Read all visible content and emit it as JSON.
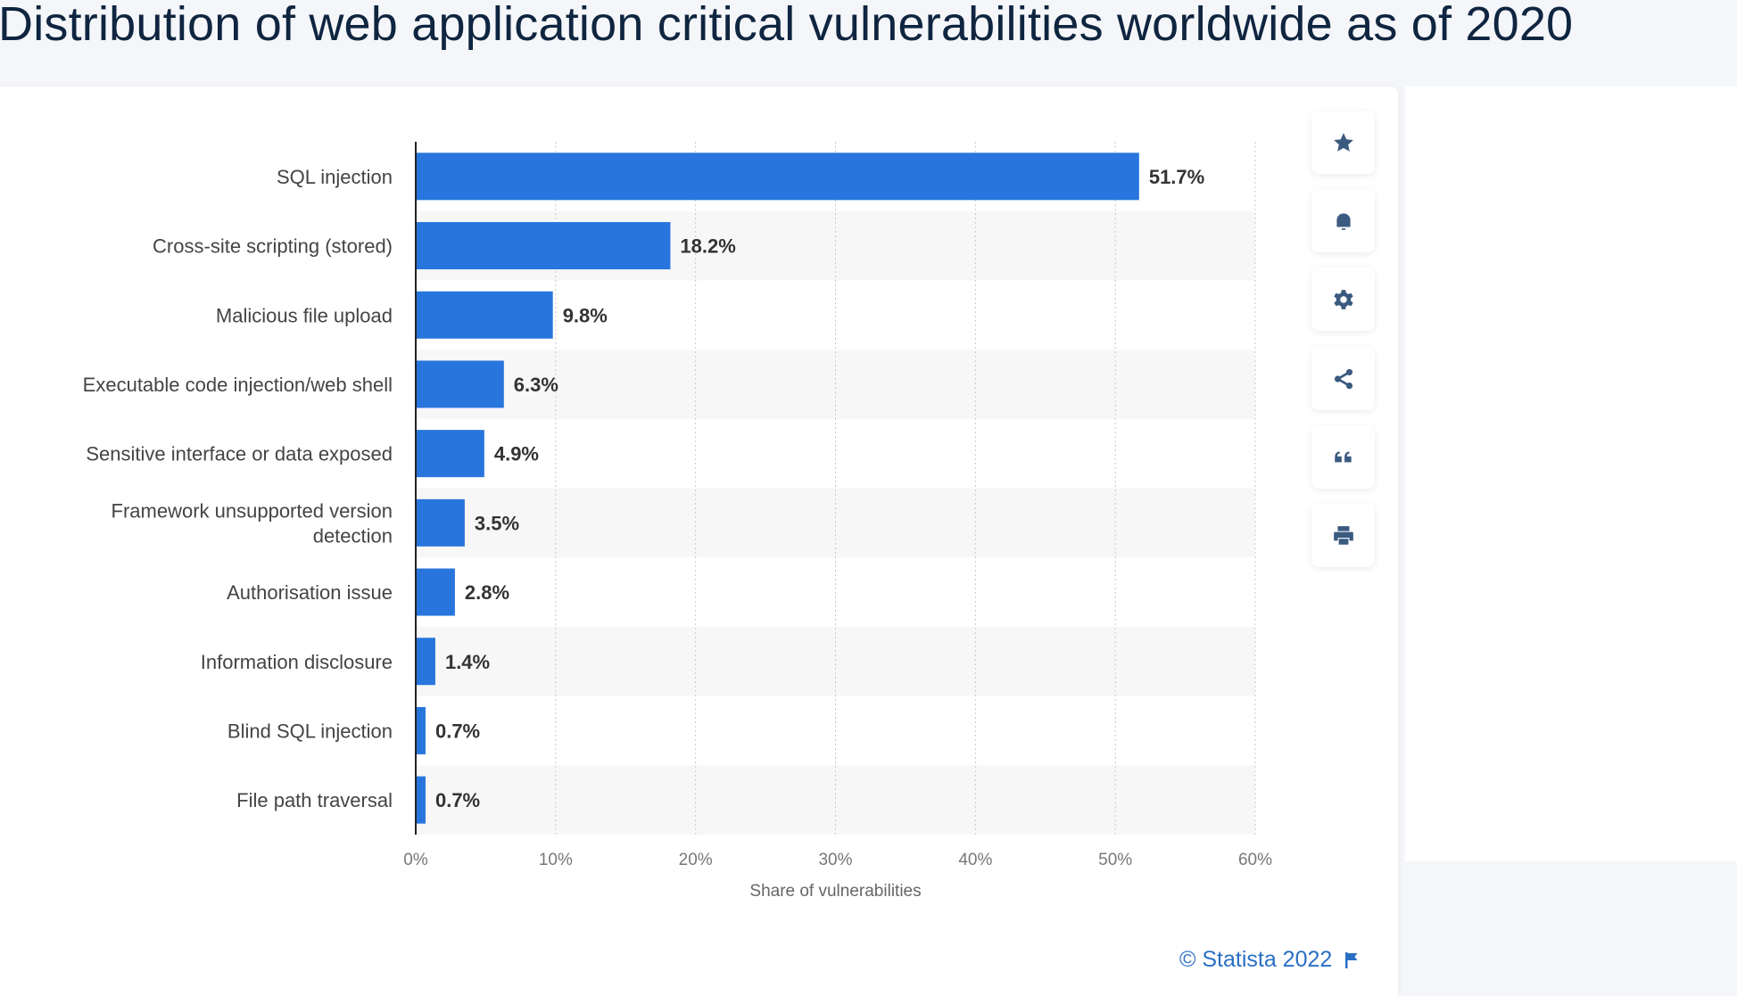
{
  "chart_data": {
    "type": "bar",
    "orientation": "horizontal",
    "title": "Distribution of web application critical vulnerabilities worldwide as of 2020",
    "categories": [
      "SQL injection",
      "Cross-site scripting (stored)",
      "Malicious file upload",
      "Executable code injection/web shell",
      "Sensitive interface or data exposed",
      "Framework unsupported version detection",
      "Authorisation issue",
      "Information disclosure",
      "Blind SQL injection",
      "File path traversal"
    ],
    "values": [
      51.7,
      18.2,
      9.8,
      6.3,
      4.9,
      3.5,
      2.8,
      1.4,
      0.7,
      0.7
    ],
    "value_labels": [
      "51.7%",
      "18.2%",
      "9.8%",
      "6.3%",
      "4.9%",
      "3.5%",
      "2.8%",
      "1.4%",
      "0.7%",
      "0.7%"
    ],
    "xlabel": "Share of vulnerabilities",
    "ylabel": "",
    "xlim": [
      0,
      60
    ],
    "ticks": [
      0,
      10,
      20,
      30,
      40,
      50,
      60
    ],
    "tick_labels": [
      "0%",
      "10%",
      "20%",
      "30%",
      "40%",
      "50%",
      "60%"
    ],
    "grid": true,
    "bar_color": "#2876dd"
  },
  "toolbar": {
    "icons": [
      "star-icon",
      "bell-icon",
      "gear-icon",
      "share-icon",
      "quote-icon",
      "print-icon"
    ]
  },
  "footer": {
    "copyright": "© Statista 2022"
  },
  "colors": {
    "title": "#0f2540",
    "icon": "#3a5a80",
    "link": "#2a6fc4"
  }
}
